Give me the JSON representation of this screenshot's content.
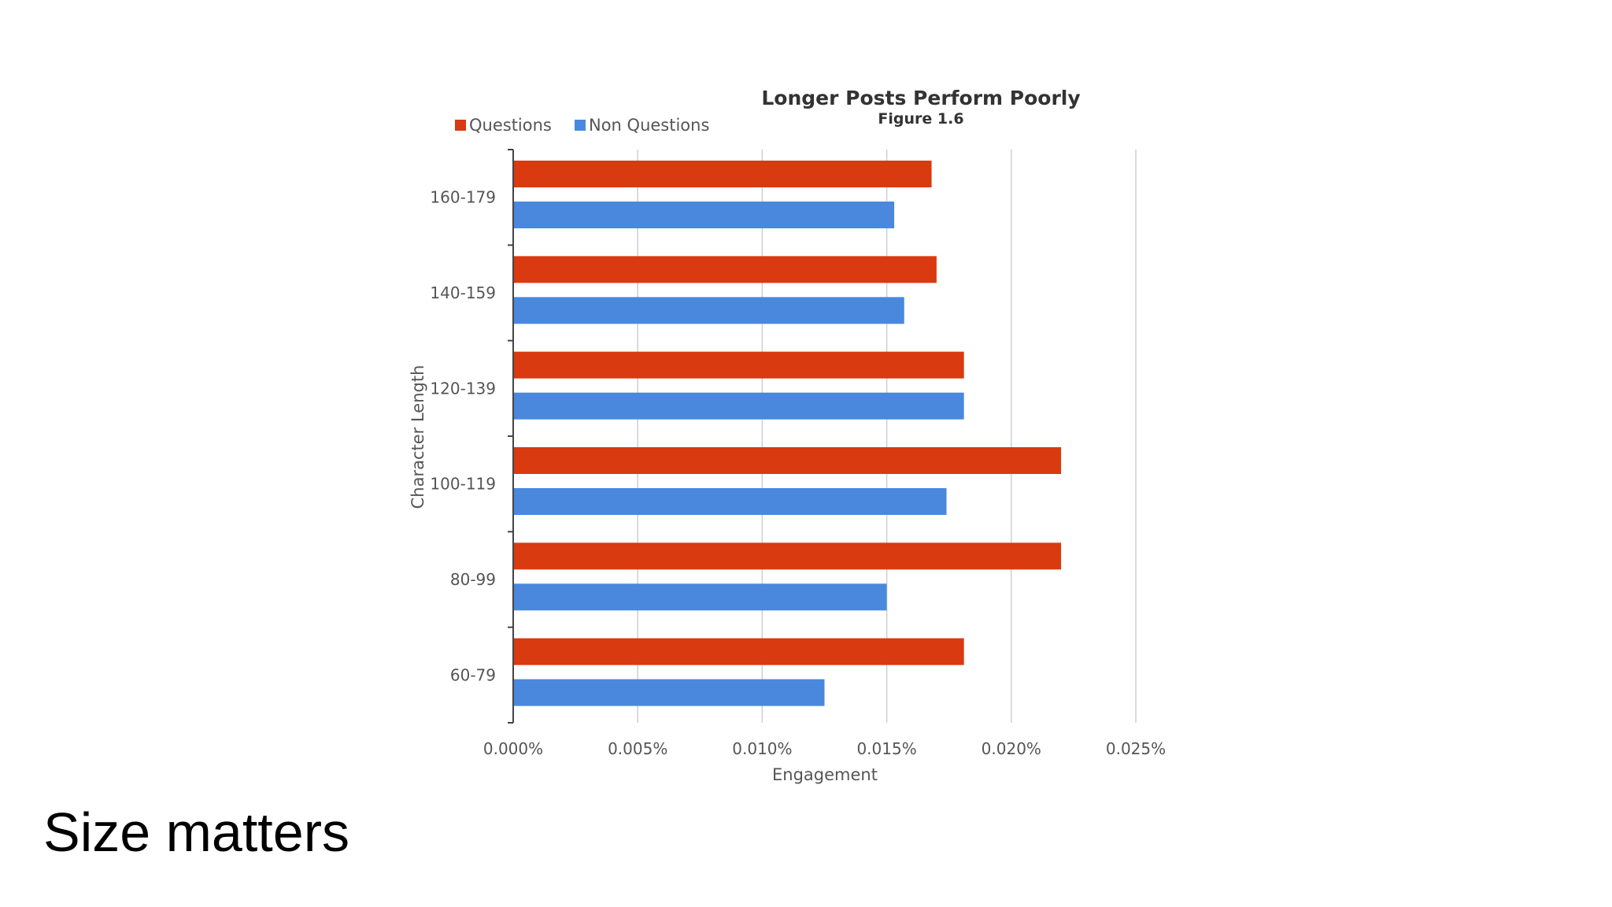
{
  "slide": {
    "caption": "Size matters"
  },
  "chart_data": {
    "type": "bar",
    "orientation": "horizontal",
    "title": "Longer Posts Perform Poorly",
    "subtitle": "Figure 1.6",
    "xlabel": "Engagement",
    "ylabel": "Character Length",
    "xlim": [
      0,
      0.025
    ],
    "xticks": [
      "0.000%",
      "0.005%",
      "0.010%",
      "0.015%",
      "0.020%",
      "0.025%"
    ],
    "grid": true,
    "legend_position": "top-left",
    "categories": [
      "160-179",
      "140-159",
      "120-139",
      "100-119",
      "80-99",
      "60-79"
    ],
    "series": [
      {
        "name": "Questions",
        "color": "#d93a10",
        "values": [
          0.0168,
          0.017,
          0.0181,
          0.022,
          0.022,
          0.0181
        ]
      },
      {
        "name": "Non Questions",
        "color": "#4a88dd",
        "values": [
          0.0153,
          0.0157,
          0.0181,
          0.0174,
          0.015,
          0.0125
        ]
      }
    ]
  }
}
